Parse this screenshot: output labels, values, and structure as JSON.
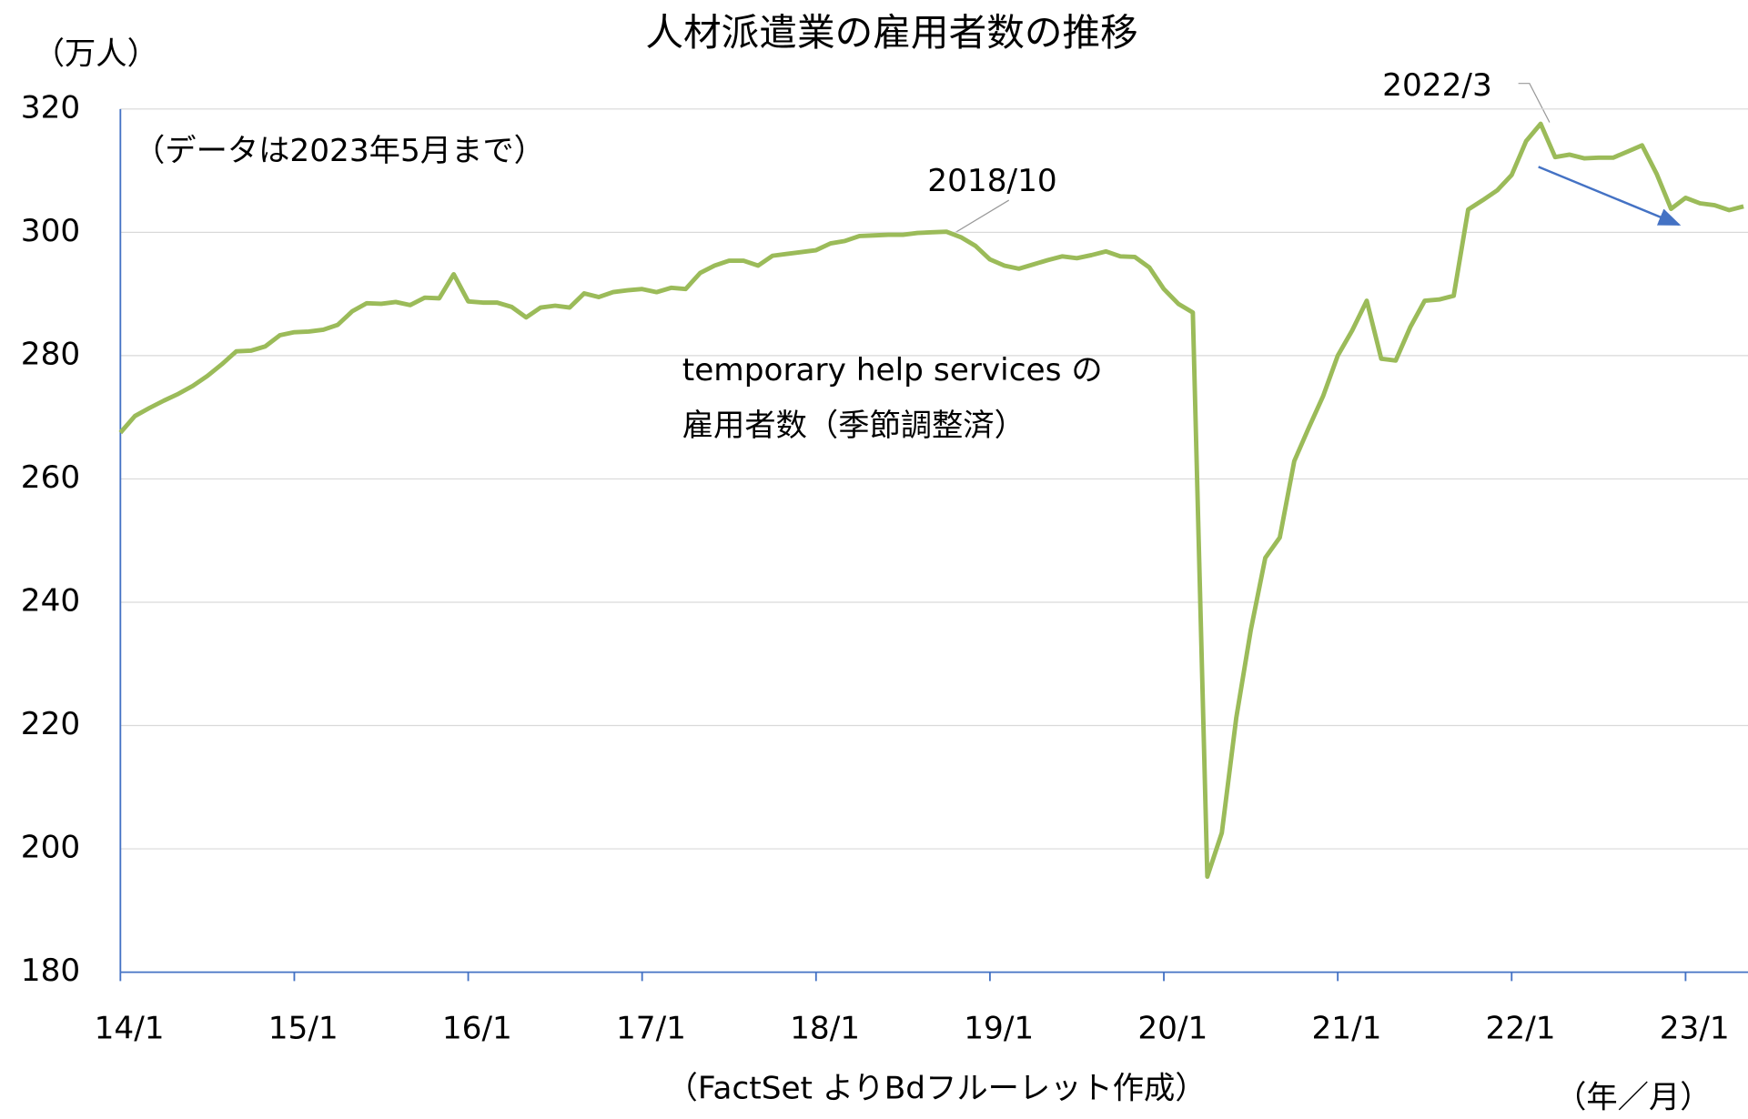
{
  "chart_data": {
    "type": "line",
    "title": "人材派遣業の雇用者数の推移",
    "y_label": "（万人）",
    "x_label": "（年／月）",
    "note": "（データは2023年5月まで）",
    "source": "（FactSet よりBdフルーレット作成）",
    "series_label": [
      "temporary help services の",
      "雇用者数（季節調整済）"
    ],
    "annotations": [
      "2018/10",
      "2022/3"
    ],
    "categories": [
      "14/1",
      null,
      null,
      null,
      null,
      null,
      null,
      null,
      null,
      null,
      null,
      null,
      "15/1",
      null,
      null,
      null,
      null,
      null,
      null,
      null,
      null,
      null,
      null,
      null,
      "16/1",
      null,
      null,
      null,
      null,
      null,
      null,
      null,
      null,
      null,
      null,
      null,
      "17/1",
      null,
      null,
      null,
      null,
      null,
      null,
      null,
      null,
      null,
      null,
      null,
      "18/1",
      null,
      null,
      null,
      null,
      null,
      null,
      null,
      null,
      null,
      null,
      null,
      "19/1",
      null,
      null,
      null,
      null,
      null,
      null,
      null,
      null,
      null,
      null,
      null,
      "20/1",
      null,
      null,
      null,
      null,
      null,
      null,
      null,
      null,
      null,
      null,
      null,
      "21/1",
      null,
      null,
      null,
      null,
      null,
      null,
      null,
      null,
      null,
      null,
      null,
      "22/1",
      null,
      null,
      null,
      null,
      null,
      null,
      null,
      null,
      null,
      null,
      null,
      "23/1",
      null,
      null,
      null,
      null
    ],
    "series": [
      {
        "name": "temporary help services",
        "color": "#9bbb59",
        "values": [
          267.5,
          270.2,
          271.5,
          272.7,
          273.8,
          275.1,
          276.7,
          278.6,
          280.7,
          280.8,
          281.5,
          283.3,
          283.8,
          283.9,
          284.2,
          285.0,
          287.2,
          288.5,
          288.4,
          288.7,
          288.2,
          289.4,
          289.3,
          293.2,
          288.8,
          288.6,
          288.6,
          287.9,
          286.2,
          287.8,
          288.1,
          287.8,
          290.1,
          289.5,
          290.3,
          290.6,
          290.8,
          290.3,
          291.0,
          290.8,
          293.4,
          294.6,
          295.4,
          295.4,
          294.6,
          296.2,
          296.5,
          296.8,
          297.1,
          298.2,
          298.6,
          299.4,
          299.5,
          299.6,
          299.6,
          299.9,
          300.0,
          300.1,
          299.2,
          297.8,
          295.6,
          294.6,
          294.1,
          294.8,
          295.5,
          296.1,
          295.8,
          296.3,
          296.9,
          296.1,
          296.0,
          294.3,
          290.8,
          288.4,
          287.0,
          195.5,
          202.6,
          221.3,
          235.5,
          247.2,
          250.5,
          262.9,
          268.3,
          273.5,
          280.0,
          284.1,
          288.9,
          279.5,
          279.2,
          284.6,
          288.9,
          289.1,
          289.7,
          303.7,
          305.2,
          306.8,
          309.3,
          314.8,
          317.6,
          312.2,
          312.6,
          312.0,
          312.1,
          312.1,
          313.1,
          314.1,
          309.5,
          303.8,
          305.6,
          304.7,
          304.4,
          303.6,
          304.2
        ]
      }
    ],
    "ylim": [
      180,
      320
    ],
    "yticks": [
      180,
      200,
      220,
      240,
      260,
      280,
      300,
      320
    ],
    "grid": true
  }
}
